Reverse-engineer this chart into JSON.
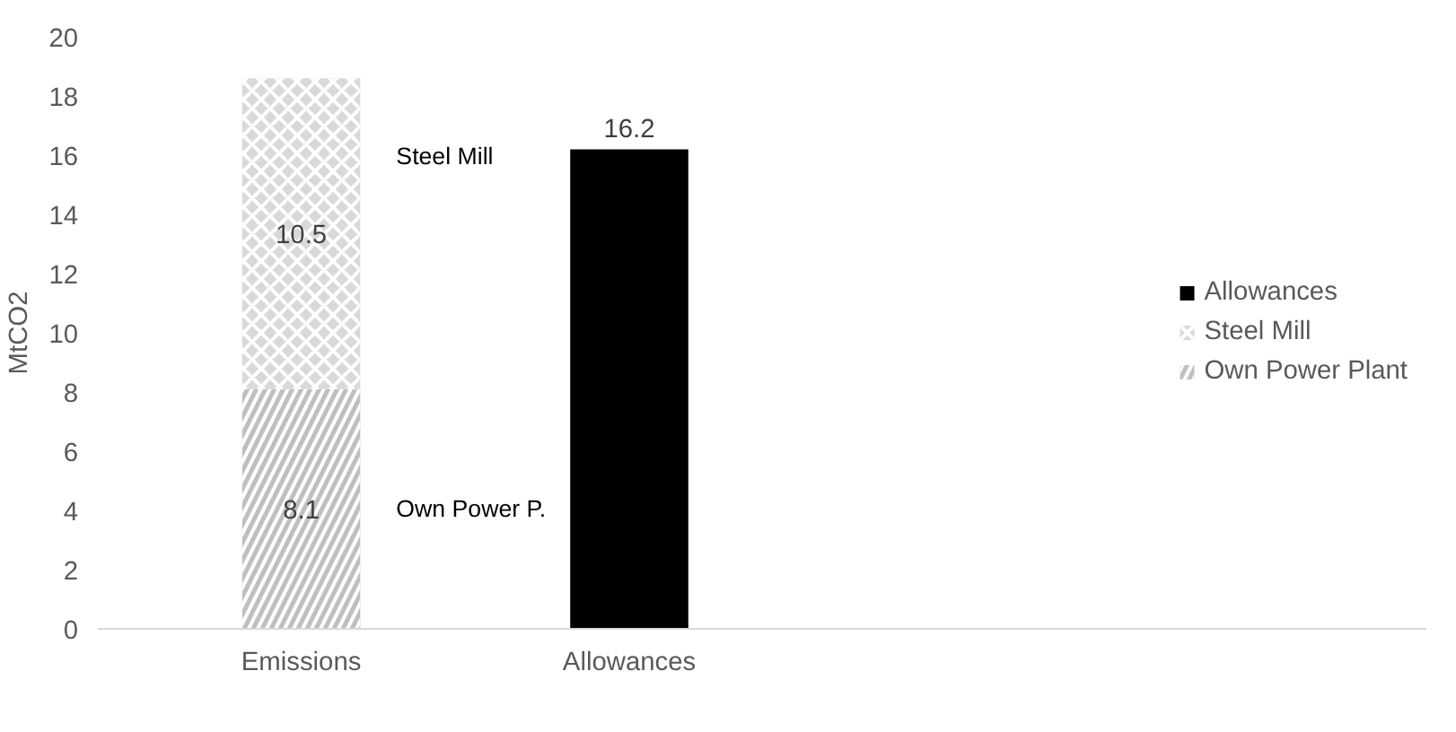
{
  "chart_data": {
    "type": "bar",
    "stacked": true,
    "ylabel": "MtCO2",
    "categories": [
      "Emissions",
      "Allowances"
    ],
    "series": [
      {
        "name": "Own Power Plant",
        "color": "#bfbfbf",
        "values": [
          8.1,
          null
        ]
      },
      {
        "name": "Steel Mill",
        "color": "#d9d9d9",
        "values": [
          10.5,
          null
        ]
      },
      {
        "name": "Allowances",
        "color": "#000000",
        "values": [
          null,
          16.2
        ]
      }
    ],
    "ylim": [
      0,
      20
    ],
    "yticks": [
      0,
      2,
      4,
      6,
      8,
      10,
      12,
      14,
      16,
      18,
      20
    ],
    "data_labels": true,
    "legend": "right",
    "grid": false,
    "annotations": [
      "Steel Mill",
      "Own Power P."
    ]
  }
}
